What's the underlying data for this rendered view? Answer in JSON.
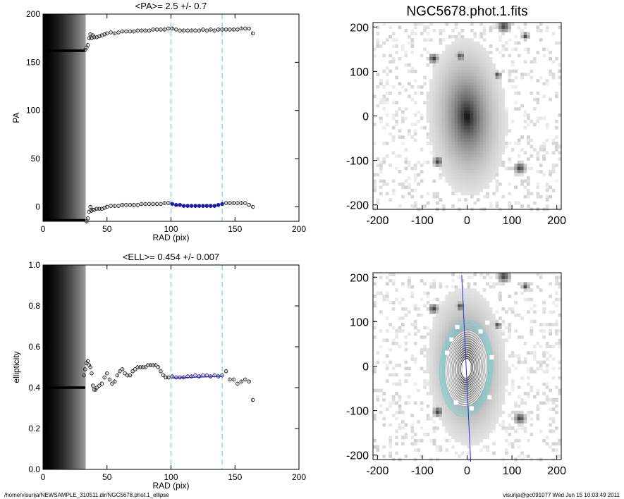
{
  "footer": {
    "path": "/home/visurija/NEWSAMPLE_310511.dir/NGC5678.phot.1_ellipse",
    "user_time": "visurija@pc091077  Wed Jun 15 10:03:49 2011"
  },
  "colors": {
    "points": "#000000",
    "fit_points": "#1a1aa8",
    "fit_line": "#2a2ad8",
    "dashed": "#6fd4d8",
    "contours_white": "#ffffff",
    "contours_cyan": "#7fd0d0"
  },
  "chart_data": [
    {
      "type": "scatter",
      "id": "pa",
      "title": "<PA>=   2.5 +/-   0.7",
      "xlabel": "RAD (pix)",
      "ylabel": "PA",
      "xlim": [
        0,
        200
      ],
      "ylim": [
        -15,
        200
      ],
      "xticks": [
        "0",
        "50",
        "100",
        "150",
        "200"
      ],
      "yticks": [
        "0",
        "50",
        "100",
        "150",
        "200"
      ],
      "xtick_values": [
        0,
        50,
        100,
        150,
        200
      ],
      "ytick_values": [
        0,
        50,
        100,
        150,
        200
      ],
      "vlines": [
        100,
        140
      ],
      "flat_level_upper": 162,
      "flat_level_lower": -18,
      "shaded_region": [
        0,
        33
      ],
      "series": [
        {
          "x": [
            33,
            34,
            35,
            36,
            37,
            38,
            39,
            40,
            42,
            44,
            46,
            48,
            50,
            53,
            56,
            59,
            62,
            65,
            68,
            71,
            74,
            77,
            80,
            83,
            86,
            89,
            92,
            95,
            98,
            101,
            104,
            107,
            110,
            113,
            116,
            119,
            122,
            125,
            128,
            131,
            134,
            137,
            140,
            143,
            146,
            149,
            152,
            155,
            158,
            161,
            164
          ],
          "y": [
            163,
            165,
            168,
            175,
            179,
            175,
            178,
            176,
            176,
            177,
            178,
            179,
            180,
            181,
            180,
            181,
            182,
            182,
            182,
            182,
            183,
            183,
            183,
            183,
            184,
            184,
            184,
            184,
            185,
            185,
            184,
            183,
            183,
            183,
            183,
            183,
            183,
            184,
            183,
            184,
            183,
            184,
            184,
            184,
            184,
            184,
            184,
            185,
            185,
            185,
            180
          ]
        },
        {
          "x": [
            33,
            34,
            35,
            36,
            37,
            38,
            39,
            40,
            42,
            44,
            46,
            48,
            50,
            53,
            56,
            59,
            62,
            65,
            68,
            71,
            74,
            77,
            80,
            83,
            86,
            89,
            92,
            95,
            98
          ],
          "y": [
            -17,
            -15,
            -12,
            -5,
            0,
            -4,
            -3,
            -3,
            -2,
            -2,
            -2,
            -1,
            0,
            1,
            1,
            1,
            2,
            2,
            2,
            2,
            2,
            3,
            3,
            3,
            3,
            3,
            3,
            4,
            4
          ]
        },
        {
          "x": [
            101,
            104,
            107,
            110,
            113,
            116,
            119,
            122,
            125,
            128,
            131,
            134,
            137,
            140
          ],
          "y": [
            3,
            2,
            2,
            1,
            1,
            1,
            1,
            1,
            1,
            1,
            1,
            1,
            2,
            3
          ]
        },
        {
          "x": [
            143,
            146,
            149,
            152,
            155,
            158,
            161,
            164
          ],
          "y": [
            4,
            4,
            4,
            4,
            4,
            4,
            2,
            0
          ]
        }
      ]
    },
    {
      "type": "scatter",
      "id": "ell",
      "title": "<ELL>= 0.454 +/-   0.007",
      "xlabel": "RAD (pix)",
      "ylabel": "ellipticity",
      "xlim": [
        0,
        200
      ],
      "ylim": [
        0.0,
        1.0
      ],
      "xticks": [
        "0",
        "50",
        "100",
        "150",
        "200"
      ],
      "yticks": [
        "0.0",
        "0.2",
        "0.4",
        "0.6",
        "0.8",
        "1.0"
      ],
      "xtick_values": [
        0,
        50,
        100,
        150,
        200
      ],
      "ytick_values": [
        0.0,
        0.2,
        0.4,
        0.6,
        0.8,
        1.0
      ],
      "vlines": [
        100,
        140
      ],
      "flat_level": 0.4,
      "fit_line": [
        [
          100,
          0.447
        ],
        [
          140,
          0.455
        ]
      ],
      "shaded_region": [
        0,
        33
      ],
      "series": [
        {
          "x": [
            32,
            33,
            34,
            35,
            36,
            37,
            38,
            39,
            40,
            41,
            42,
            44,
            46,
            48,
            50,
            52,
            54,
            56,
            58,
            60,
            62,
            64,
            66,
            68,
            70,
            72,
            74,
            76,
            78,
            80,
            82,
            84,
            86,
            88,
            90,
            92,
            94,
            96,
            98,
            101,
            104,
            107,
            110,
            113,
            116,
            119,
            122,
            125,
            128,
            131,
            134,
            137,
            140,
            143,
            146,
            149,
            152,
            155,
            158,
            161,
            164
          ],
          "y": [
            0.46,
            0.49,
            0.52,
            0.53,
            0.51,
            0.5,
            0.47,
            0.41,
            0.39,
            0.39,
            0.4,
            0.41,
            0.42,
            0.45,
            0.47,
            0.44,
            0.42,
            0.43,
            0.46,
            0.48,
            0.49,
            0.47,
            0.46,
            0.46,
            0.48,
            0.49,
            0.5,
            0.5,
            0.5,
            0.5,
            0.51,
            0.51,
            0.51,
            0.51,
            0.5,
            0.48,
            0.46,
            0.45,
            0.45,
            0.455,
            0.45,
            0.45,
            0.45,
            0.455,
            0.455,
            0.46,
            0.455,
            0.46,
            0.46,
            0.455,
            0.46,
            0.455,
            0.46,
            0.48,
            0.44,
            0.44,
            0.42,
            0.43,
            0.44,
            0.43,
            0.34
          ]
        }
      ]
    },
    {
      "type": "heatmap",
      "id": "image",
      "title": "NGC5678.phot.1.fits",
      "xlim": [
        -210,
        210
      ],
      "ylim": [
        -210,
        210
      ],
      "xticks": [
        "-200",
        "-100",
        "0",
        "100",
        "200"
      ],
      "yticks": [
        "-200",
        "-100",
        "0",
        "100",
        "200"
      ]
    },
    {
      "type": "heatmap",
      "id": "model",
      "title": "",
      "xlim": [
        -210,
        210
      ],
      "ylim": [
        -210,
        210
      ],
      "xticks": [
        "-200",
        "-100",
        "0",
        "100",
        "200"
      ],
      "yticks": [
        "-200",
        "-100",
        "0",
        "100",
        "200"
      ]
    }
  ]
}
